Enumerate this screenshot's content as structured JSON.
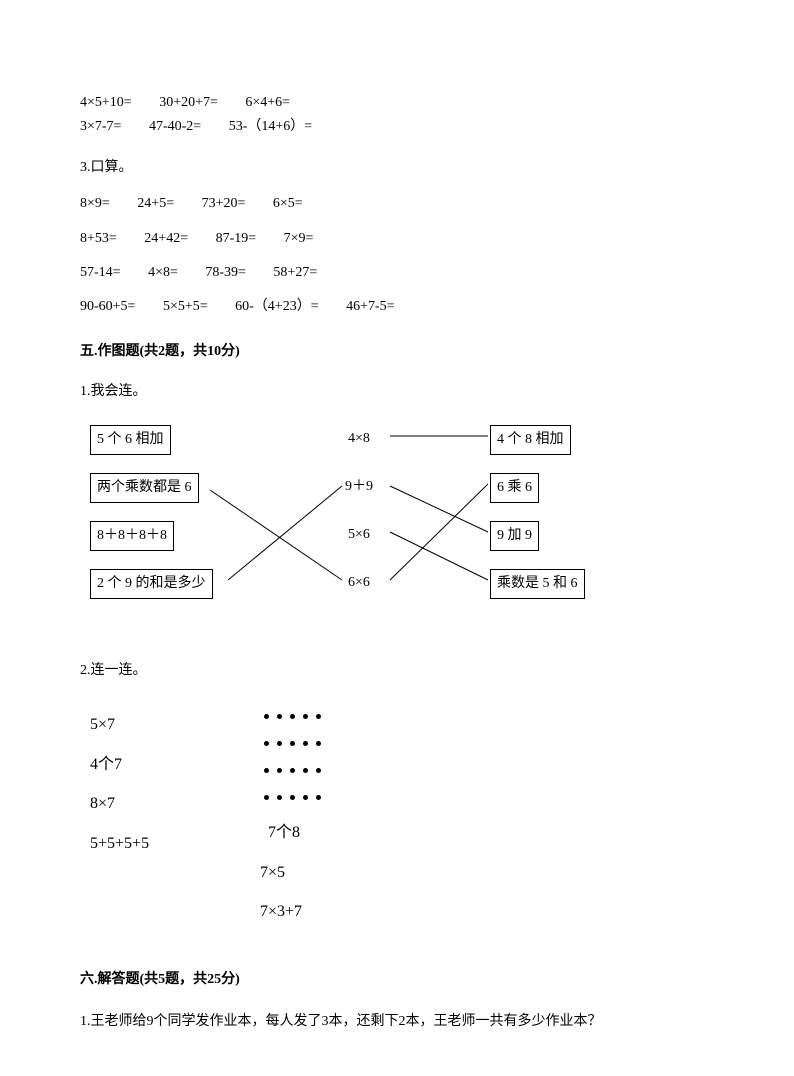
{
  "colors": {
    "text": "#000000",
    "bg": "#ffffff",
    "border": "#000000"
  },
  "topEquations": {
    "row1": [
      "4×5+10=",
      "30+20+7=",
      "6×4+6="
    ],
    "row2": [
      "3×7-7=",
      "47-40-2=",
      "53-（14+6）="
    ]
  },
  "q3": {
    "title": "3.口算。",
    "rows": [
      [
        "8×9=",
        "24+5=",
        "73+20=",
        "6×5="
      ],
      [
        "8+53=",
        "24+42=",
        "87-19=",
        "7×9="
      ],
      [
        "57-14=",
        "4×8=",
        "78-39=",
        "58+27="
      ],
      [
        "90-60+5=",
        "5×5+5=",
        "60-（4+23）=",
        "46+7-5="
      ]
    ]
  },
  "section5": {
    "heading": "五.作图题(共2题，共10分)",
    "q1_title": "1.我会连。",
    "left_boxes": [
      "5 个 6 相加",
      "两个乘数都是 6",
      "8＋8＋8＋8",
      "2 个 9 的和是多少"
    ],
    "mid_texts": [
      "4×8",
      "9＋9",
      "5×6",
      "6×6"
    ],
    "right_boxes": [
      "4 个 8 相加",
      "6 乘 6",
      "9 加 9",
      "乘数是 5 和 6"
    ],
    "q2_title": "2.连一连。",
    "q2_left": [
      "5×7",
      "4个7",
      "8×7",
      "5+5+5+5"
    ],
    "q2_right": [
      "7个8",
      "7×5",
      "7×3+7"
    ],
    "dot_grid": {
      "rows": 4,
      "cols": 5
    }
  },
  "section6": {
    "heading": "六.解答题(共5题，共25分)",
    "q1": "1.王老师给9个同学发作业本，每人发了3本，还剩下2本，王老师一共有多少作业本？"
  }
}
